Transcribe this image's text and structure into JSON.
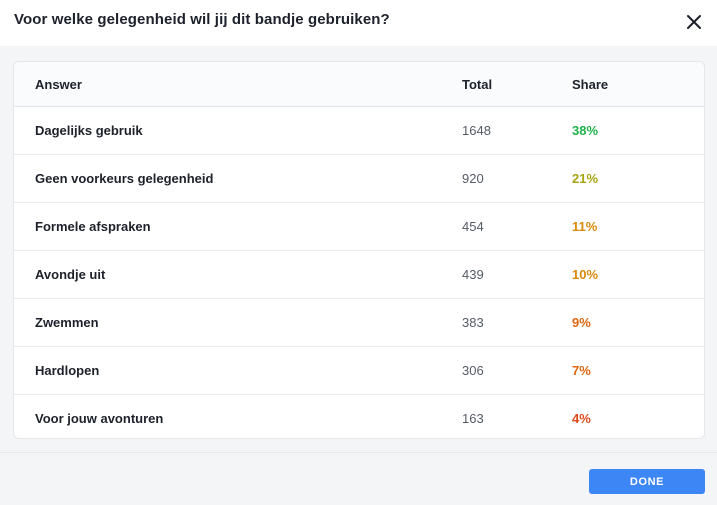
{
  "dialog": {
    "title": "Voor welke gelegenheid wil jij dit bandje gebruiken?",
    "close_icon": "close-icon",
    "done_label": "DONE"
  },
  "table": {
    "headers": {
      "answer": "Answer",
      "total": "Total",
      "share": "Share"
    },
    "rows": [
      {
        "answer": "Dagelijks gebruik",
        "total": "1648",
        "share": "38%",
        "share_color": "#1fb24a"
      },
      {
        "answer": "Geen voorkeurs gelegenheid",
        "total": "920",
        "share": "21%",
        "share_color": "#a7a412"
      },
      {
        "answer": "Formele afspraken",
        "total": "454",
        "share": "11%",
        "share_color": "#d98a0c"
      },
      {
        "answer": "Avondje uit",
        "total": "439",
        "share": "10%",
        "share_color": "#d98a0c"
      },
      {
        "answer": "Zwemmen",
        "total": "383",
        "share": "9%",
        "share_color": "#e0650f"
      },
      {
        "answer": "Hardlopen",
        "total": "306",
        "share": "7%",
        "share_color": "#e0650f"
      },
      {
        "answer": "Voor jouw avonturen",
        "total": "163",
        "share": "4%",
        "share_color": "#e0481a"
      }
    ]
  },
  "colors": {
    "accent": "#3d86f6",
    "header_bg": "#ffffff",
    "page_bg": "#f4f5f7"
  }
}
